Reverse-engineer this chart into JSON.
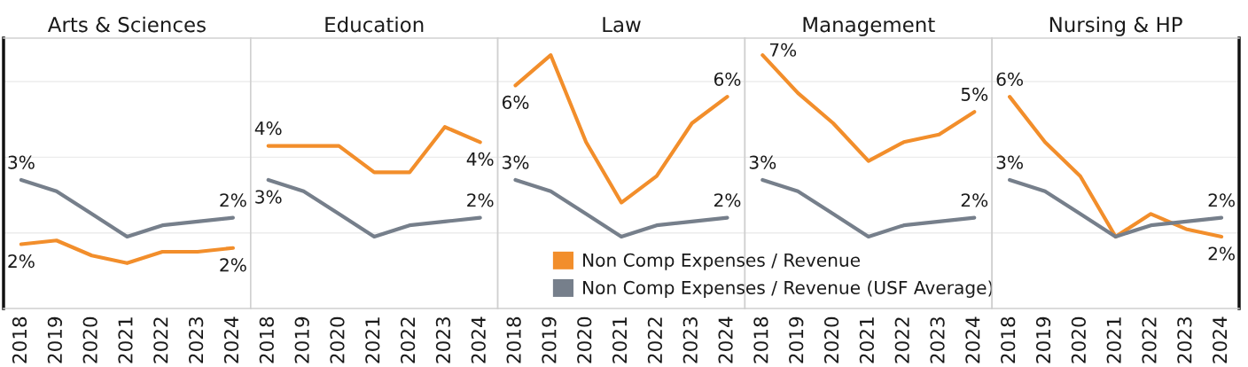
{
  "chart_data": [
    {
      "type": "line",
      "title": "Arts & Sciences",
      "categories": [
        "2018",
        "2019",
        "2020",
        "2021",
        "2022",
        "2023",
        "2024"
      ],
      "ylim": [
        0,
        7.15
      ],
      "yticks": [
        {
          "value": 0,
          "label": null
        },
        {
          "value": 2,
          "label": null
        },
        {
          "value": 4,
          "label": null
        },
        {
          "value": 6,
          "label": null
        }
      ],
      "grid": "y",
      "tick_labels": "x",
      "series": [
        {
          "color": "#f28e2b",
          "values": [
            1.7,
            1.8,
            1.4,
            1.2,
            1.5,
            1.5,
            1.6
          ],
          "value_labels": [
            "2%",
            null,
            null,
            null,
            null,
            null,
            "2%"
          ]
        },
        {
          "color": "#767f8b",
          "values": [
            3.4,
            3.1,
            2.5,
            1.9,
            2.2,
            2.3,
            2.4
          ],
          "value_labels": [
            "3%",
            null,
            null,
            null,
            null,
            null,
            "2%"
          ]
        }
      ]
    },
    {
      "type": "line",
      "title": "Education",
      "categories": [
        "2018",
        "2019",
        "2020",
        "2021",
        "2022",
        "2023",
        "2024"
      ],
      "ylim": [
        0,
        7.15
      ],
      "yticks": [
        {
          "value": 0,
          "label": null
        },
        {
          "value": 2,
          "label": null
        },
        {
          "value": 4,
          "label": null
        },
        {
          "value": 6,
          "label": null
        }
      ],
      "grid": "y",
      "tick_labels": "x",
      "series": [
        {
          "color": "#f28e2b",
          "values": [
            4.3,
            4.3,
            4.3,
            3.6,
            3.6,
            4.8,
            4.4
          ],
          "value_labels": [
            "4%",
            null,
            null,
            null,
            null,
            null,
            "4%"
          ]
        },
        {
          "color": "#767f8b",
          "values": [
            3.4,
            3.1,
            2.5,
            1.9,
            2.2,
            2.3,
            2.4
          ],
          "value_labels": [
            "3%",
            null,
            null,
            null,
            null,
            null,
            "2%"
          ]
        }
      ]
    },
    {
      "type": "line",
      "title": "Law",
      "categories": [
        "2018",
        "2019",
        "2020",
        "2021",
        "2022",
        "2023",
        "2024"
      ],
      "ylim": [
        0,
        7.15
      ],
      "yticks": [
        {
          "value": 0,
          "label": null
        },
        {
          "value": 2,
          "label": null
        },
        {
          "value": 4,
          "label": null
        },
        {
          "value": 6,
          "label": null
        }
      ],
      "grid": "y",
      "tick_labels": "x",
      "series": [
        {
          "color": "#f28e2b",
          "values": [
            5.9,
            6.7,
            4.4,
            2.8,
            3.5,
            4.9,
            5.6
          ],
          "value_labels": [
            "6%",
            null,
            null,
            null,
            null,
            null,
            "6%"
          ]
        },
        {
          "color": "#767f8b",
          "values": [
            3.4,
            3.1,
            2.5,
            1.9,
            2.2,
            2.3,
            2.4
          ],
          "value_labels": [
            "3%",
            null,
            null,
            null,
            null,
            null,
            "2%"
          ]
        }
      ]
    },
    {
      "type": "line",
      "title": "Management",
      "categories": [
        "2018",
        "2019",
        "2020",
        "2021",
        "2022",
        "2023",
        "2024"
      ],
      "ylim": [
        0,
        7.15
      ],
      "yticks": [
        {
          "value": 0,
          "label": null
        },
        {
          "value": 2,
          "label": null
        },
        {
          "value": 4,
          "label": null
        },
        {
          "value": 6,
          "label": null
        }
      ],
      "grid": "y",
      "tick_labels": "x",
      "legend": "bottom left",
      "series": [
        {
          "name": "Non Comp Expenses / Revenue",
          "color": "#f28e2b",
          "values": [
            6.7,
            5.7,
            4.9,
            3.9,
            4.4,
            4.6,
            5.2
          ],
          "value_labels": [
            "7%",
            null,
            null,
            null,
            null,
            null,
            "5%"
          ]
        },
        {
          "name": "Non Comp Expenses / Revenue (USF Average)",
          "color": "#767f8b",
          "values": [
            3.4,
            3.1,
            2.5,
            1.9,
            2.2,
            2.3,
            2.4
          ],
          "value_labels": [
            "3%",
            null,
            null,
            null,
            null,
            null,
            "2%"
          ]
        }
      ]
    },
    {
      "type": "line",
      "title": "Nursing & HP",
      "categories": [
        "2018",
        "2019",
        "2020",
        "2021",
        "2022",
        "2023",
        "2024"
      ],
      "ylim": [
        0,
        7.15
      ],
      "yticks": [
        {
          "value": 0,
          "label": null
        },
        {
          "value": 2,
          "label": null
        },
        {
          "value": 4,
          "label": null
        },
        {
          "value": 6,
          "label": null
        }
      ],
      "grid": "y",
      "tick_labels": "x",
      "series": [
        {
          "color": "#f28e2b",
          "values": [
            5.6,
            4.4,
            3.5,
            1.9,
            2.5,
            2.1,
            1.9
          ],
          "value_labels": [
            "6%",
            null,
            null,
            null,
            null,
            null,
            "2%"
          ]
        },
        {
          "color": "#767f8b",
          "values": [
            3.4,
            3.1,
            2.5,
            1.9,
            2.2,
            2.3,
            2.4
          ],
          "value_labels": [
            "3%",
            null,
            null,
            null,
            null,
            null,
            "2%"
          ]
        }
      ]
    }
  ]
}
